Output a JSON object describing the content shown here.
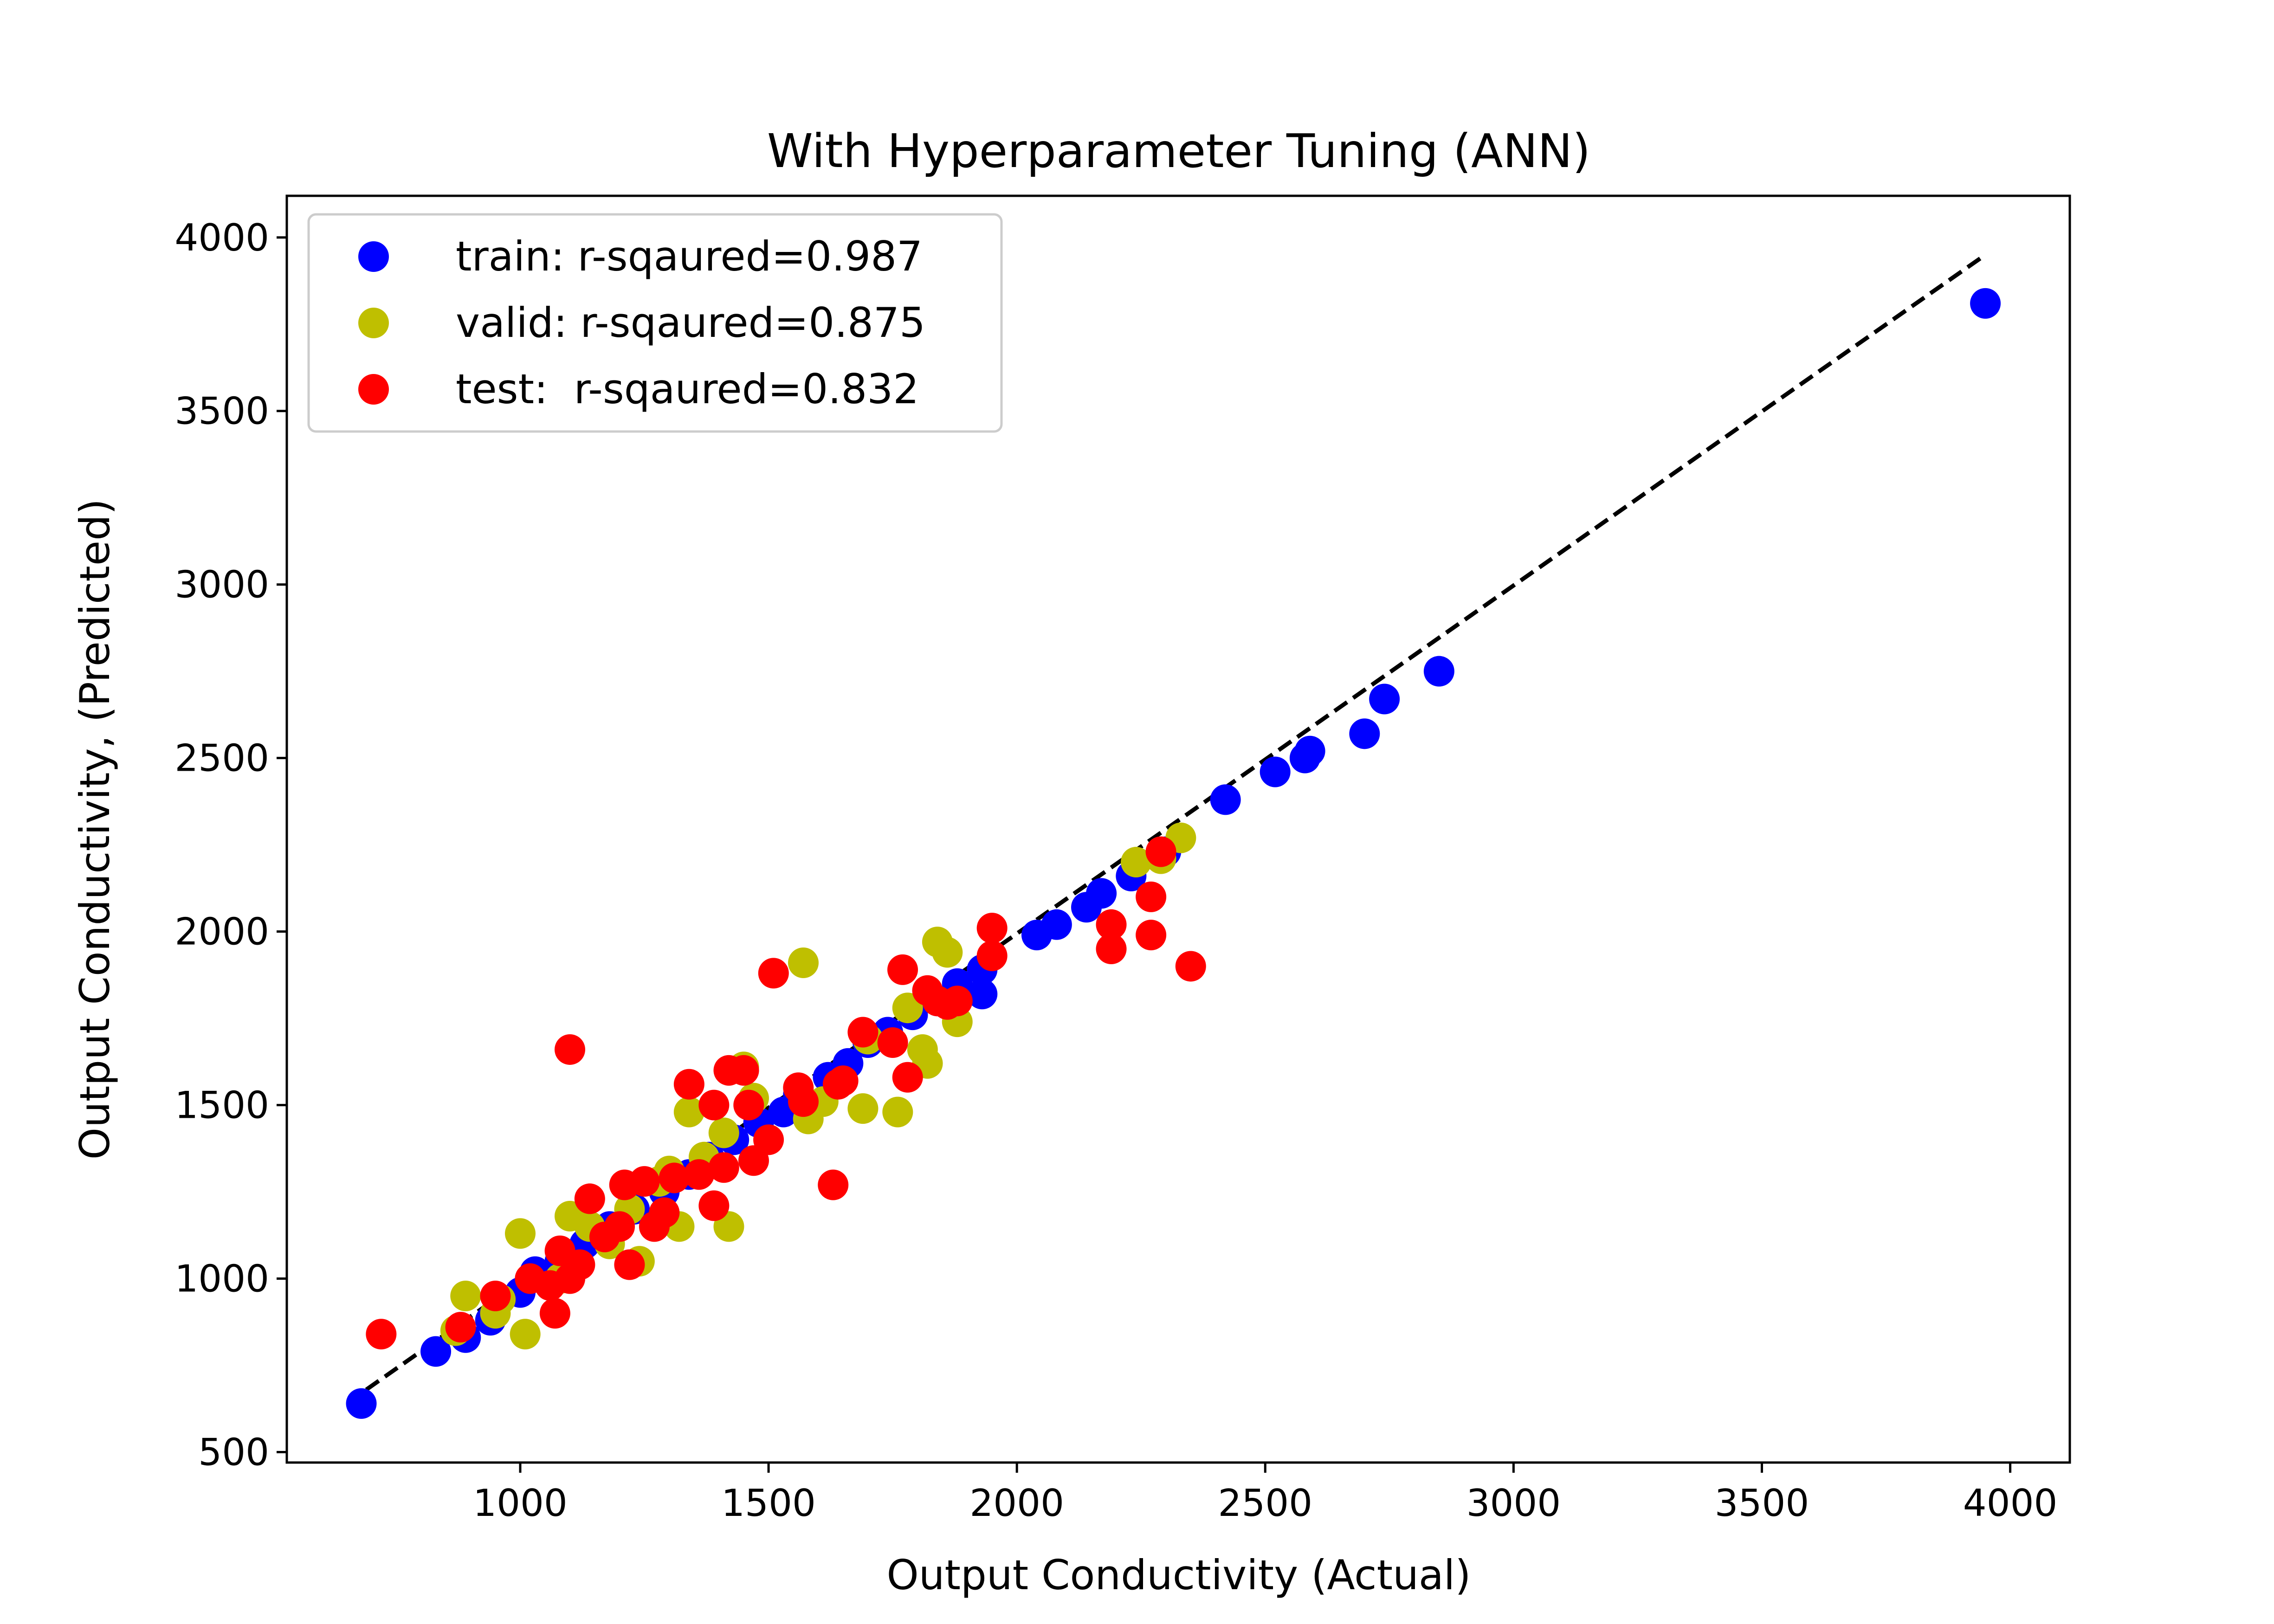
{
  "chart_data": {
    "type": "scatter",
    "title": "With Hyperparameter Tuning (ANN)",
    "xlabel": "Output Conductivity (Actual)",
    "ylabel": "Output Conductivity, (Predicted)",
    "xlim": [
      530,
      4120
    ],
    "ylim": [
      470,
      4120
    ],
    "xticks": [
      1000,
      1500,
      2000,
      2500,
      3000,
      3500,
      4000
    ],
    "yticks": [
      500,
      1000,
      1500,
      2000,
      2500,
      3000,
      3500,
      4000
    ],
    "grid": false,
    "legend_position": "top-left",
    "reference_line": {
      "style": "dashed",
      "color": "#000000",
      "points": [
        [
          690,
          680
        ],
        [
          3950,
          3950
        ]
      ]
    },
    "series": [
      {
        "name": "train: r-sqaured=0.987",
        "color": "#0000ff",
        "points": [
          [
            680,
            640
          ],
          [
            830,
            790
          ],
          [
            890,
            830
          ],
          [
            940,
            880
          ],
          [
            1000,
            960
          ],
          [
            1030,
            1020
          ],
          [
            1080,
            1050
          ],
          [
            1130,
            1100
          ],
          [
            1180,
            1150
          ],
          [
            1230,
            1200
          ],
          [
            1290,
            1250
          ],
          [
            1340,
            1300
          ],
          [
            1380,
            1350
          ],
          [
            1430,
            1400
          ],
          [
            1480,
            1450
          ],
          [
            1530,
            1480
          ],
          [
            1560,
            1530
          ],
          [
            1620,
            1580
          ],
          [
            1660,
            1620
          ],
          [
            1700,
            1680
          ],
          [
            1740,
            1710
          ],
          [
            1790,
            1760
          ],
          [
            1840,
            1800
          ],
          [
            1880,
            1850
          ],
          [
            1930,
            1890
          ],
          [
            1930,
            1820
          ],
          [
            2040,
            1990
          ],
          [
            2080,
            2020
          ],
          [
            2140,
            2070
          ],
          [
            2170,
            2110
          ],
          [
            2230,
            2160
          ],
          [
            2300,
            2230
          ],
          [
            2420,
            2380
          ],
          [
            2520,
            2460
          ],
          [
            2580,
            2500
          ],
          [
            2590,
            2520
          ],
          [
            2700,
            2570
          ],
          [
            2740,
            2670
          ],
          [
            2850,
            2750
          ],
          [
            3950,
            3810
          ]
        ]
      },
      {
        "name": "valid: r-sqaured=0.875",
        "color": "#bfbf00",
        "points": [
          [
            870,
            850
          ],
          [
            890,
            950
          ],
          [
            950,
            900
          ],
          [
            960,
            940
          ],
          [
            1000,
            1130
          ],
          [
            1010,
            840
          ],
          [
            1080,
            1000
          ],
          [
            1100,
            1180
          ],
          [
            1140,
            1150
          ],
          [
            1180,
            1100
          ],
          [
            1240,
            1050
          ],
          [
            1280,
            1280
          ],
          [
            1300,
            1310
          ],
          [
            1320,
            1150
          ],
          [
            1340,
            1480
          ],
          [
            1370,
            1350
          ],
          [
            1410,
            1420
          ],
          [
            1420,
            1150
          ],
          [
            1450,
            1610
          ],
          [
            1470,
            1520
          ],
          [
            1570,
            1910
          ],
          [
            1580,
            1460
          ],
          [
            1610,
            1510
          ],
          [
            1690,
            1490
          ],
          [
            1760,
            1480
          ],
          [
            1810,
            1660
          ],
          [
            1820,
            1620
          ],
          [
            1840,
            1970
          ],
          [
            1860,
            1940
          ],
          [
            1880,
            1740
          ],
          [
            2240,
            2200
          ],
          [
            2290,
            2210
          ],
          [
            2330,
            2270
          ],
          [
            1700,
            1690
          ],
          [
            1780,
            1780
          ],
          [
            1220,
            1200
          ]
        ]
      },
      {
        "name": "test:  r-sqaured=0.832",
        "color": "#ff0000",
        "points": [
          [
            720,
            840
          ],
          [
            880,
            860
          ],
          [
            950,
            950
          ],
          [
            1020,
            1000
          ],
          [
            1060,
            980
          ],
          [
            1070,
            900
          ],
          [
            1080,
            1080
          ],
          [
            1100,
            1660
          ],
          [
            1100,
            1000
          ],
          [
            1120,
            1040
          ],
          [
            1140,
            1230
          ],
          [
            1170,
            1120
          ],
          [
            1200,
            1150
          ],
          [
            1210,
            1270
          ],
          [
            1220,
            1040
          ],
          [
            1250,
            1280
          ],
          [
            1270,
            1150
          ],
          [
            1290,
            1190
          ],
          [
            1310,
            1290
          ],
          [
            1340,
            1560
          ],
          [
            1360,
            1300
          ],
          [
            1390,
            1500
          ],
          [
            1390,
            1210
          ],
          [
            1410,
            1320
          ],
          [
            1420,
            1600
          ],
          [
            1450,
            1600
          ],
          [
            1460,
            1500
          ],
          [
            1470,
            1340
          ],
          [
            1500,
            1400
          ],
          [
            1510,
            1880
          ],
          [
            1560,
            1550
          ],
          [
            1570,
            1510
          ],
          [
            1630,
            1270
          ],
          [
            1640,
            1560
          ],
          [
            1650,
            1570
          ],
          [
            1690,
            1710
          ],
          [
            1750,
            1680
          ],
          [
            1770,
            1890
          ],
          [
            1780,
            1580
          ],
          [
            1820,
            1830
          ],
          [
            1840,
            1800
          ],
          [
            1860,
            1790
          ],
          [
            1880,
            1800
          ],
          [
            1950,
            2010
          ],
          [
            1950,
            1930
          ],
          [
            2190,
            2020
          ],
          [
            2190,
            1950
          ],
          [
            2270,
            1990
          ],
          [
            2270,
            2100
          ],
          [
            2290,
            2230
          ],
          [
            2350,
            1900
          ]
        ]
      }
    ]
  }
}
